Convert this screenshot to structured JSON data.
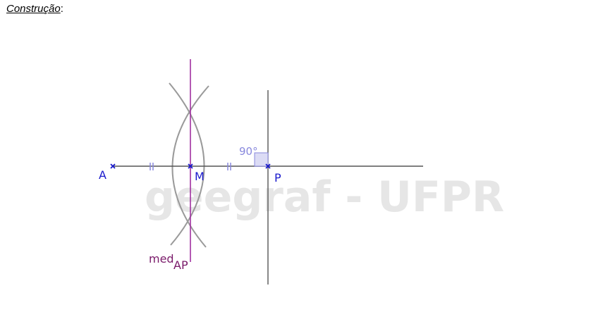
{
  "title": "Construção",
  "title_suffix": ":",
  "labels": {
    "A": "A",
    "M": "M",
    "P": "P",
    "med": "med",
    "med_sub": "AP",
    "angle": "90°"
  },
  "watermark": "geegraf - UFPR",
  "colors": {
    "point": "#1a1acc",
    "line": "#555555",
    "arc": "#9a9a9a",
    "bisector": "#a030a0",
    "bisector_label": "#7a1a6a",
    "tick": "#8888dd",
    "angle": "#8888dd",
    "watermark": "#e6e6e6"
  }
}
